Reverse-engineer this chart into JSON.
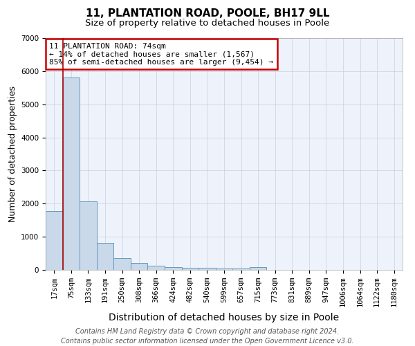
{
  "title": "11, PLANTATION ROAD, POOLE, BH17 9LL",
  "subtitle": "Size of property relative to detached houses in Poole",
  "xlabel": "Distribution of detached houses by size in Poole",
  "ylabel": "Number of detached properties",
  "categories": [
    "17sqm",
    "75sqm",
    "133sqm",
    "191sqm",
    "250sqm",
    "308sqm",
    "366sqm",
    "424sqm",
    "482sqm",
    "540sqm",
    "599sqm",
    "657sqm",
    "715sqm",
    "773sqm",
    "831sqm",
    "889sqm",
    "947sqm",
    "1006sqm",
    "1064sqm",
    "1122sqm",
    "1180sqm"
  ],
  "values": [
    1780,
    5800,
    2060,
    820,
    350,
    200,
    115,
    90,
    70,
    55,
    45,
    38,
    85,
    0,
    0,
    0,
    0,
    0,
    0,
    0,
    0
  ],
  "bar_color": "#c9d9ea",
  "bar_edge_color": "#6699bb",
  "property_line_color": "#aa0000",
  "annotation_text": "11 PLANTATION ROAD: 74sqm\n← 14% of detached houses are smaller (1,567)\n85% of semi-detached houses are larger (9,454) →",
  "annotation_box_color": "#ffffff",
  "annotation_box_edge": "#cc0000",
  "footer_line1": "Contains HM Land Registry data © Crown copyright and database right 2024.",
  "footer_line2": "Contains public sector information licensed under the Open Government Licence v3.0.",
  "background_color": "#ffffff",
  "plot_background": "#eef2fb",
  "ylim": [
    0,
    7000
  ],
  "title_fontsize": 11,
  "subtitle_fontsize": 9.5,
  "axis_label_fontsize": 9,
  "tick_fontsize": 7.5,
  "footer_fontsize": 7
}
